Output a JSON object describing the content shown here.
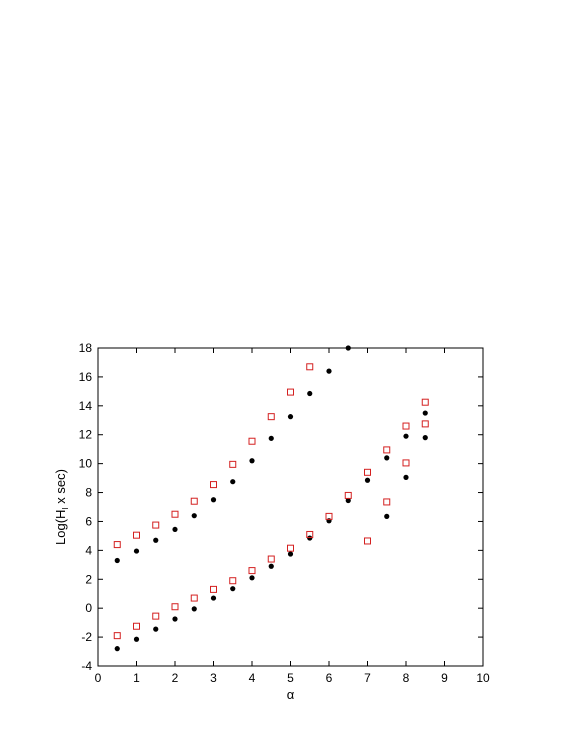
{
  "chart_data": {
    "type": "scatter",
    "title": "",
    "xlabel": "α",
    "ylabel": {
      "main": "Log(H",
      "sub": "I",
      "tail": " x sec)"
    },
    "xlim": [
      0,
      10
    ],
    "ylim": [
      -4,
      18
    ],
    "xticks": [
      0,
      1,
      2,
      3,
      4,
      5,
      6,
      7,
      8,
      9,
      10
    ],
    "yticks": [
      -4,
      -2,
      0,
      2,
      4,
      6,
      8,
      10,
      12,
      14,
      16,
      18
    ],
    "grid": false,
    "legend": "none",
    "series": [
      {
        "marker": "filled-circle",
        "color": "#000000",
        "points": [
          [
            0.5,
            3.3
          ],
          [
            1.0,
            3.95
          ],
          [
            1.5,
            4.7
          ],
          [
            2.0,
            5.45
          ],
          [
            2.5,
            6.4
          ],
          [
            3.0,
            7.5
          ],
          [
            3.5,
            8.75
          ],
          [
            4.0,
            10.2
          ],
          [
            4.5,
            11.75
          ],
          [
            5.0,
            13.25
          ],
          [
            5.5,
            14.85
          ],
          [
            6.0,
            16.4
          ],
          [
            6.5,
            18.0
          ],
          [
            0.5,
            -2.8
          ],
          [
            1.0,
            -2.15
          ],
          [
            1.5,
            -1.45
          ],
          [
            2.0,
            -0.75
          ],
          [
            2.5,
            -0.05
          ],
          [
            3.0,
            0.7
          ],
          [
            3.5,
            1.35
          ],
          [
            4.0,
            2.1
          ],
          [
            4.5,
            2.9
          ],
          [
            5.0,
            3.75
          ],
          [
            5.5,
            4.85
          ],
          [
            6.0,
            6.05
          ],
          [
            6.5,
            7.45
          ],
          [
            7.0,
            8.85
          ],
          [
            7.5,
            10.4
          ],
          [
            8.0,
            11.9
          ],
          [
            8.5,
            13.5
          ],
          [
            7.5,
            6.35
          ],
          [
            8.0,
            9.05
          ],
          [
            8.5,
            11.8
          ]
        ]
      },
      {
        "marker": "open-square",
        "color": "#d42020",
        "points": [
          [
            0.5,
            4.4
          ],
          [
            1.0,
            5.05
          ],
          [
            1.5,
            5.75
          ],
          [
            2.0,
            6.5
          ],
          [
            2.5,
            7.4
          ],
          [
            3.0,
            8.55
          ],
          [
            3.5,
            9.95
          ],
          [
            4.0,
            11.55
          ],
          [
            4.5,
            13.25
          ],
          [
            5.0,
            14.95
          ],
          [
            5.5,
            16.7
          ],
          [
            0.5,
            -1.9
          ],
          [
            1.0,
            -1.25
          ],
          [
            1.5,
            -0.55
          ],
          [
            2.0,
            0.1
          ],
          [
            2.5,
            0.7
          ],
          [
            3.0,
            1.3
          ],
          [
            3.5,
            1.9
          ],
          [
            4.0,
            2.6
          ],
          [
            4.5,
            3.4
          ],
          [
            5.0,
            4.15
          ],
          [
            5.5,
            5.1
          ],
          [
            6.0,
            6.35
          ],
          [
            6.5,
            7.8
          ],
          [
            7.0,
            9.4
          ],
          [
            7.5,
            10.95
          ],
          [
            8.0,
            12.6
          ],
          [
            8.5,
            14.25
          ],
          [
            7.0,
            4.65
          ],
          [
            7.5,
            7.35
          ],
          [
            8.0,
            10.05
          ],
          [
            8.5,
            12.75
          ]
        ]
      }
    ]
  }
}
